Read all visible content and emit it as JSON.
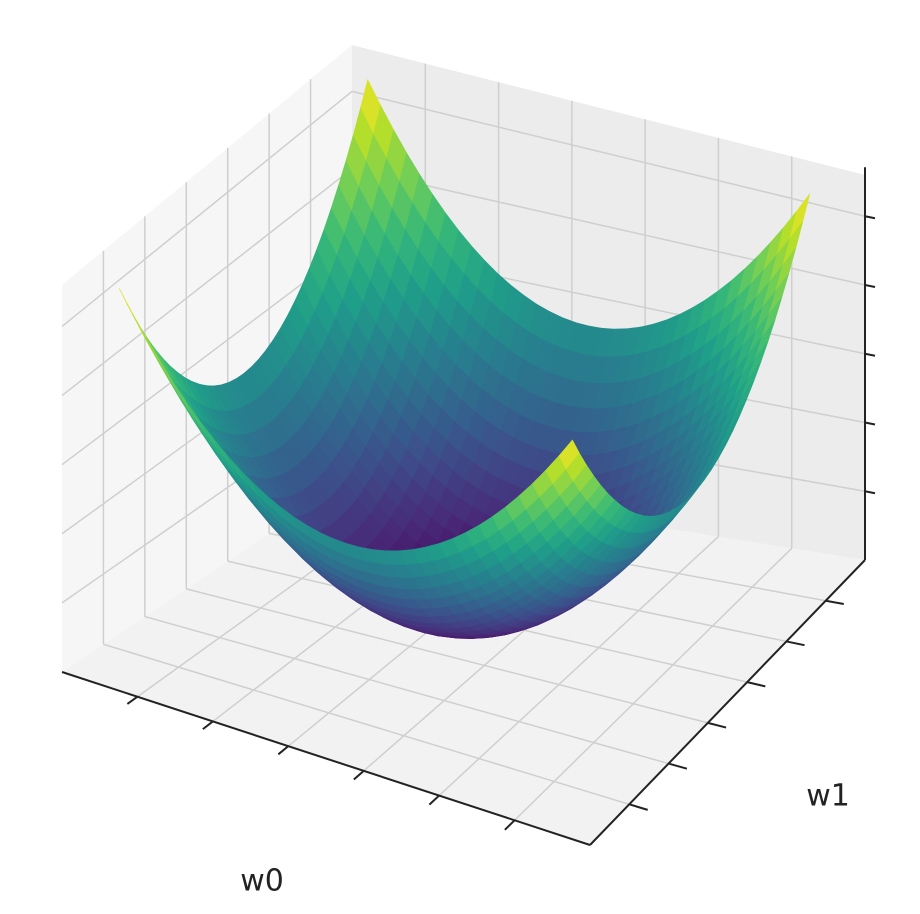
{
  "chart_data": {
    "type": "surface",
    "x_label": "w0",
    "y_label": "w1",
    "colormap": "viridis"
  }
}
